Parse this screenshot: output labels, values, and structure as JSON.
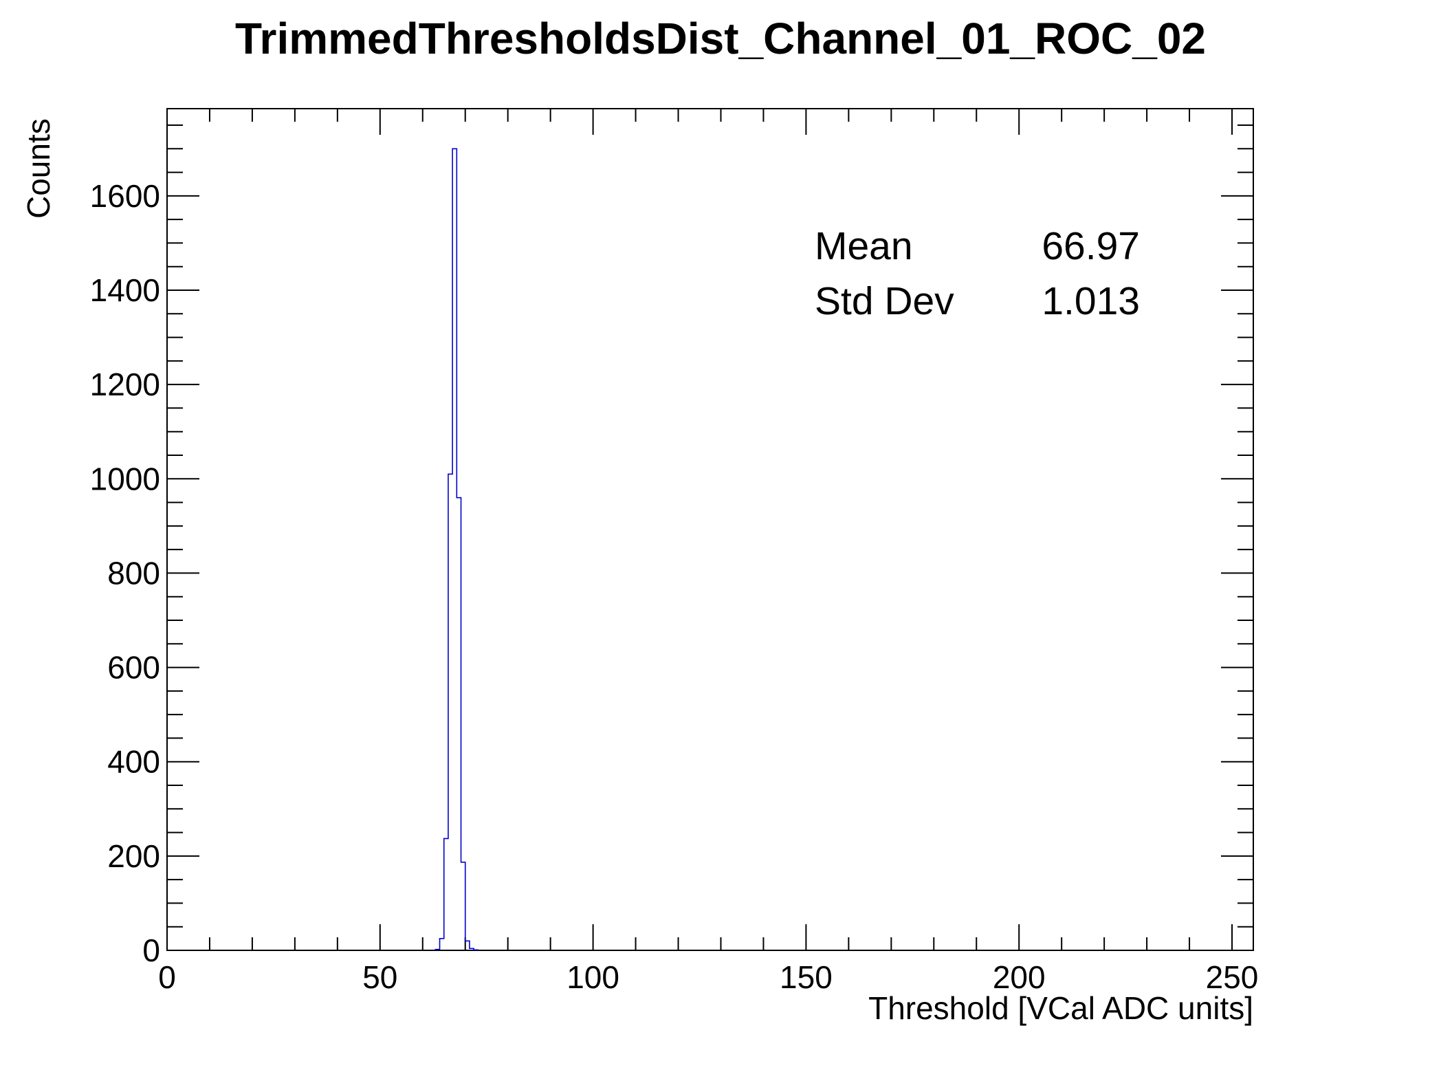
{
  "chart_data": {
    "type": "histogram",
    "title": "TrimmedThresholdsDist_Channel_01_ROC_02",
    "xlabel": "Threshold [VCal ADC units]",
    "ylabel": "Counts",
    "xlim": [
      0,
      255
    ],
    "ylim": [
      0,
      1785
    ],
    "x_ticks": [
      0,
      50,
      100,
      150,
      200,
      250
    ],
    "y_ticks": [
      0,
      200,
      400,
      600,
      800,
      1000,
      1200,
      1400,
      1600
    ],
    "bin_width": 1,
    "bins": [
      {
        "x": 63,
        "count": 2
      },
      {
        "x": 64,
        "count": 25
      },
      {
        "x": 65,
        "count": 237
      },
      {
        "x": 66,
        "count": 1010
      },
      {
        "x": 67,
        "count": 1700
      },
      {
        "x": 68,
        "count": 960
      },
      {
        "x": 69,
        "count": 187
      },
      {
        "x": 70,
        "count": 20
      },
      {
        "x": 71,
        "count": 4
      },
      {
        "x": 72,
        "count": 1
      }
    ],
    "stats": [
      {
        "label": "Mean",
        "value": "66.97"
      },
      {
        "label": "Std Dev",
        "value": "1.013"
      }
    ],
    "line_color": "#0000cc"
  }
}
